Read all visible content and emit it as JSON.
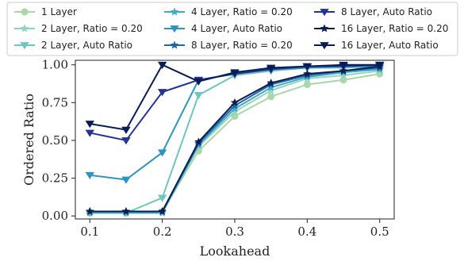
{
  "chart_data": {
    "type": "line",
    "xlabel": "Lookahead",
    "ylabel": "Ordered Ratio",
    "x": [
      0.1,
      0.15,
      0.2,
      0.25,
      0.3,
      0.35,
      0.4,
      0.45,
      0.5
    ],
    "xlim": [
      0.08,
      0.52
    ],
    "ylim": [
      -0.02,
      1.03
    ],
    "xticks": [
      0.1,
      0.2,
      0.3,
      0.4,
      0.5
    ],
    "xtick_labels": [
      "0.1",
      "0.2",
      "0.3",
      "0.4",
      "0.5"
    ],
    "yticks": [
      0.0,
      0.25,
      0.5,
      0.75,
      1.0
    ],
    "ytick_labels": [
      "0.00",
      "0.25",
      "0.50",
      "0.75",
      "1.00"
    ],
    "grid": false,
    "legend_placement": "top, outside plot, 3 columns",
    "series": [
      {
        "name": "1 Layer",
        "color": "#a8d8a8",
        "marker": "circle",
        "values": [
          0.02,
          0.02,
          0.03,
          0.43,
          0.66,
          0.79,
          0.87,
          0.9,
          0.94
        ]
      },
      {
        "name": "2 Layer, Ratio = 0.20",
        "color": "#8fd6c0",
        "marker": "star",
        "values": [
          0.02,
          0.02,
          0.02,
          0.46,
          0.69,
          0.83,
          0.91,
          0.93,
          0.96
        ]
      },
      {
        "name": "2 Layer, Auto Ratio",
        "color": "#6cc8bd",
        "marker": "triangle-down",
        "values": [
          0.02,
          0.02,
          0.12,
          0.8,
          0.93,
          0.96,
          0.98,
          0.98,
          0.99
        ]
      },
      {
        "name": "4 Layer, Ratio = 0.20",
        "color": "#41aac4",
        "marker": "star",
        "values": [
          0.02,
          0.02,
          0.02,
          0.47,
          0.71,
          0.85,
          0.92,
          0.95,
          0.97
        ]
      },
      {
        "name": "4 Layer, Auto Ratio",
        "color": "#2b95c2",
        "marker": "triangle-down",
        "values": [
          0.27,
          0.24,
          0.42,
          0.9,
          0.94,
          0.97,
          0.98,
          0.99,
          0.99
        ]
      },
      {
        "name": "8 Layer, Ratio = 0.20",
        "color": "#2166ac",
        "marker": "star",
        "values": [
          0.03,
          0.03,
          0.03,
          0.48,
          0.73,
          0.87,
          0.93,
          0.96,
          0.98
        ]
      },
      {
        "name": "8 Layer, Auto Ratio",
        "color": "#253494",
        "marker": "triangle-down",
        "values": [
          0.55,
          0.5,
          0.82,
          0.9,
          0.94,
          0.97,
          0.99,
          0.99,
          1.0
        ]
      },
      {
        "name": "16 Layer, Ratio = 0.20",
        "color": "#0b1d51",
        "marker": "star",
        "values": [
          0.03,
          0.03,
          0.03,
          0.49,
          0.75,
          0.88,
          0.94,
          0.96,
          0.99
        ]
      },
      {
        "name": "16 Layer, Auto Ratio",
        "color": "#081d58",
        "marker": "triangle-down",
        "values": [
          0.61,
          0.57,
          1.0,
          0.89,
          0.95,
          0.98,
          0.99,
          1.0,
          1.0
        ]
      }
    ]
  }
}
